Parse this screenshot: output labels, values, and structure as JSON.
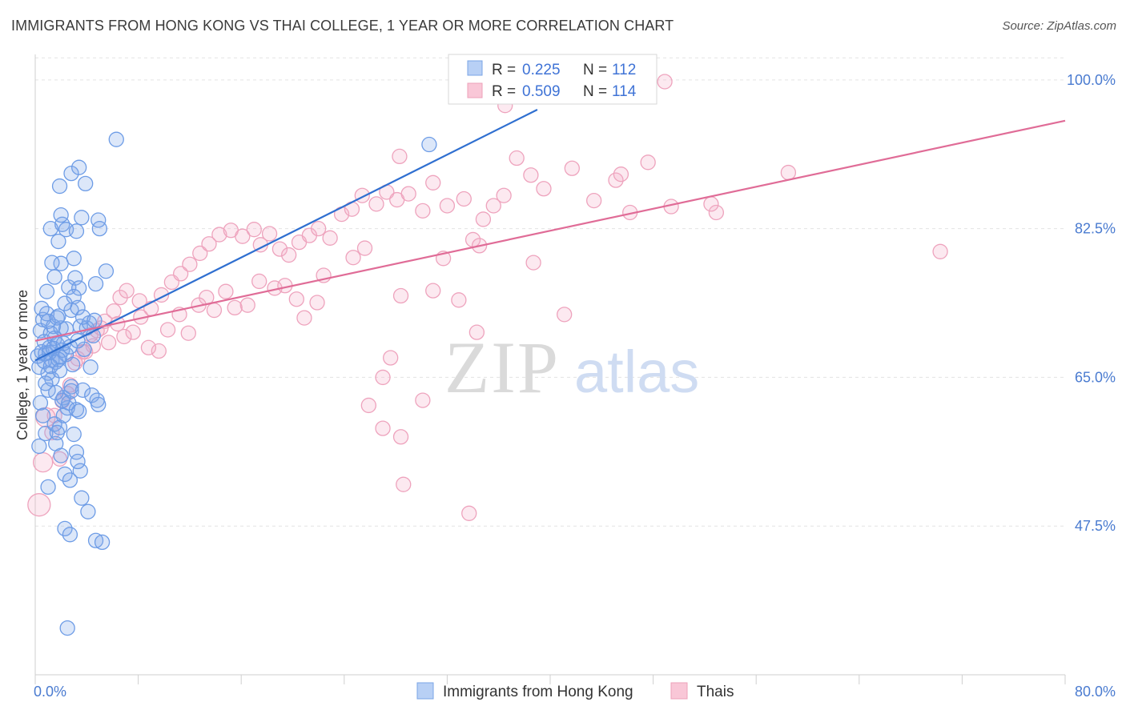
{
  "header": {
    "title": "IMMIGRANTS FROM HONG KONG VS THAI COLLEGE, 1 YEAR OR MORE CORRELATION CHART",
    "source": "Source: ZipAtlas.com"
  },
  "watermark": {
    "zip": "ZIP",
    "atlas": "atlas"
  },
  "chart_data": {
    "type": "scatter",
    "title": "IMMIGRANTS FROM HONG KONG VS THAI COLLEGE, 1 YEAR OR MORE CORRELATION CHART",
    "xlabel": "",
    "ylabel": "College, 1 year or more",
    "xlim": [
      0,
      80
    ],
    "ylim": [
      30,
      103
    ],
    "x_tick_labels": [
      "0.0%",
      "80.0%"
    ],
    "y_ticks": [
      47.5,
      65.0,
      82.5,
      100.0
    ],
    "y_tick_labels": [
      "47.5%",
      "65.0%",
      "82.5%",
      "100.0%"
    ],
    "grid": true,
    "legend_position": "top-center",
    "colors": {
      "blue": "#6fa0ea",
      "blue_line": "#2f6fd0",
      "pink": "#f0a3bf",
      "pink_line": "#e06c97"
    },
    "series": [
      {
        "name": "Immigrants from Hong Kong",
        "R": "0.225",
        "N": "112",
        "r_label": "R =",
        "n_label": "N =",
        "trend": {
          "x": [
            0,
            39
          ],
          "y": [
            67.0,
            96.5
          ]
        },
        "points": [
          [
            0.2,
            67.5
          ],
          [
            0.3,
            66.2
          ],
          [
            0.4,
            70.5
          ],
          [
            0.5,
            68.0
          ],
          [
            0.6,
            71.8
          ],
          [
            0.7,
            69.2
          ],
          [
            0.8,
            67.8
          ],
          [
            0.9,
            72.5
          ],
          [
            1.0,
            65.5
          ],
          [
            1.1,
            68.5
          ],
          [
            1.2,
            70.2
          ],
          [
            1.3,
            67.0
          ],
          [
            1.4,
            71.0
          ],
          [
            1.5,
            69.6
          ],
          [
            1.6,
            66.8
          ],
          [
            1.7,
            68.9
          ],
          [
            1.8,
            72.2
          ],
          [
            1.9,
            67.4
          ],
          [
            2.0,
            70.8
          ],
          [
            2.1,
            68.2
          ],
          [
            0.4,
            62.0
          ],
          [
            0.6,
            60.5
          ],
          [
            0.8,
            58.4
          ],
          [
            1.0,
            63.5
          ],
          [
            1.3,
            64.8
          ],
          [
            1.6,
            57.2
          ],
          [
            1.9,
            59.1
          ],
          [
            2.2,
            62.6
          ],
          [
            2.5,
            61.4
          ],
          [
            2.8,
            63.9
          ],
          [
            3.0,
            58.3
          ],
          [
            3.2,
            56.2
          ],
          [
            3.5,
            54.0
          ],
          [
            2.3,
            53.6
          ],
          [
            2.7,
            52.9
          ],
          [
            1.0,
            52.1
          ],
          [
            3.6,
            50.8
          ],
          [
            4.1,
            49.2
          ],
          [
            2.3,
            47.2
          ],
          [
            2.7,
            46.5
          ],
          [
            4.7,
            45.8
          ],
          [
            5.2,
            45.6
          ],
          [
            2.5,
            35.5
          ],
          [
            0.9,
            75.1
          ],
          [
            1.5,
            76.8
          ],
          [
            2.0,
            78.4
          ],
          [
            2.6,
            75.6
          ],
          [
            3.1,
            76.7
          ],
          [
            3.4,
            75.5
          ],
          [
            3.0,
            79.0
          ],
          [
            4.7,
            76.0
          ],
          [
            5.5,
            77.5
          ],
          [
            1.3,
            78.5
          ],
          [
            1.2,
            82.5
          ],
          [
            1.8,
            81.0
          ],
          [
            2.1,
            83.0
          ],
          [
            2.4,
            82.4
          ],
          [
            3.2,
            82.2
          ],
          [
            3.6,
            83.8
          ],
          [
            4.9,
            83.5
          ],
          [
            5.0,
            82.5
          ],
          [
            1.9,
            87.5
          ],
          [
            2.8,
            89.0
          ],
          [
            3.4,
            89.7
          ],
          [
            3.9,
            87.8
          ],
          [
            2.0,
            84.1
          ],
          [
            6.3,
            93.0
          ],
          [
            30.6,
            92.4
          ],
          [
            3.0,
            74.5
          ],
          [
            2.8,
            72.9
          ],
          [
            3.3,
            73.2
          ],
          [
            3.5,
            71.0
          ],
          [
            4.0,
            70.8
          ],
          [
            4.2,
            71.4
          ],
          [
            4.5,
            69.9
          ],
          [
            3.8,
            68.3
          ],
          [
            2.4,
            67.7
          ],
          [
            2.9,
            66.5
          ],
          [
            4.3,
            66.2
          ],
          [
            3.7,
            63.5
          ],
          [
            4.4,
            62.9
          ],
          [
            4.8,
            62.3
          ],
          [
            2.1,
            62.3
          ],
          [
            2.6,
            62.0
          ],
          [
            3.2,
            61.2
          ],
          [
            1.5,
            59.5
          ],
          [
            1.7,
            58.5
          ],
          [
            0.3,
            56.9
          ],
          [
            2.0,
            55.8
          ],
          [
            3.3,
            55.1
          ],
          [
            1.1,
            67.9
          ],
          [
            1.4,
            68.4
          ],
          [
            1.8,
            67.1
          ],
          [
            2.2,
            69.0
          ],
          [
            2.4,
            70.7
          ],
          [
            2.7,
            68.6
          ],
          [
            3.3,
            69.3
          ],
          [
            0.7,
            66.9
          ],
          [
            1.2,
            66.3
          ],
          [
            1.9,
            65.8
          ],
          [
            1.6,
            63.2
          ],
          [
            2.8,
            63.4
          ],
          [
            1.0,
            71.6
          ],
          [
            1.7,
            72.0
          ],
          [
            0.5,
            73.1
          ],
          [
            2.3,
            73.7
          ],
          [
            3.7,
            72.1
          ],
          [
            4.6,
            71.7
          ],
          [
            3.4,
            61.0
          ],
          [
            2.2,
            60.5
          ],
          [
            0.8,
            64.3
          ],
          [
            4.9,
            61.8
          ]
        ]
      },
      {
        "name": "Thais",
        "R": "0.509",
        "N": "114",
        "r_label": "R =",
        "n_label": "N =",
        "trend": {
          "x": [
            0,
            80
          ],
          "y": [
            69.3,
            95.2
          ]
        },
        "points": [
          [
            0.3,
            50.0
          ],
          [
            0.6,
            55.0
          ],
          [
            1.3,
            58.5
          ],
          [
            1.5,
            60.5
          ],
          [
            2.1,
            62.2
          ],
          [
            2.7,
            64.1
          ],
          [
            3.3,
            67.2
          ],
          [
            3.9,
            68.0
          ],
          [
            4.3,
            70.0
          ],
          [
            4.8,
            70.5
          ],
          [
            5.4,
            71.6
          ],
          [
            6.1,
            72.8
          ],
          [
            6.6,
            74.4
          ],
          [
            7.1,
            75.2
          ],
          [
            8.1,
            74.0
          ],
          [
            9.0,
            73.1
          ],
          [
            9.8,
            74.7
          ],
          [
            10.6,
            76.2
          ],
          [
            11.3,
            77.2
          ],
          [
            12.0,
            78.3
          ],
          [
            12.8,
            79.6
          ],
          [
            13.5,
            80.7
          ],
          [
            14.3,
            81.8
          ],
          [
            15.2,
            82.3
          ],
          [
            16.1,
            81.6
          ],
          [
            17.0,
            82.4
          ],
          [
            17.5,
            80.6
          ],
          [
            18.2,
            81.9
          ],
          [
            19.0,
            80.1
          ],
          [
            19.7,
            79.4
          ],
          [
            20.5,
            80.9
          ],
          [
            21.3,
            81.7
          ],
          [
            22.0,
            82.5
          ],
          [
            22.9,
            81.4
          ],
          [
            23.8,
            84.2
          ],
          [
            24.6,
            84.8
          ],
          [
            25.4,
            86.4
          ],
          [
            26.5,
            85.4
          ],
          [
            27.3,
            86.8
          ],
          [
            28.1,
            85.9
          ],
          [
            29.0,
            86.6
          ],
          [
            30.1,
            84.6
          ],
          [
            30.9,
            87.9
          ],
          [
            32.0,
            85.2
          ],
          [
            33.3,
            86.0
          ],
          [
            34.0,
            81.2
          ],
          [
            34.8,
            83.6
          ],
          [
            35.6,
            85.2
          ],
          [
            36.4,
            86.4
          ],
          [
            37.4,
            90.8
          ],
          [
            38.5,
            88.8
          ],
          [
            39.5,
            87.2
          ],
          [
            41.7,
            89.6
          ],
          [
            43.4,
            85.8
          ],
          [
            45.1,
            88.2
          ],
          [
            46.2,
            84.4
          ],
          [
            47.6,
            90.3
          ],
          [
            49.4,
            85.1
          ],
          [
            52.9,
            84.4
          ],
          [
            28.3,
            91.0
          ],
          [
            36.5,
            97.0
          ],
          [
            48.9,
            99.8
          ],
          [
            45.5,
            88.9
          ],
          [
            41.1,
            72.4
          ],
          [
            34.3,
            70.3
          ],
          [
            33.7,
            49.0
          ],
          [
            27.0,
            65.0
          ],
          [
            25.9,
            61.7
          ],
          [
            27.0,
            59.0
          ],
          [
            28.4,
            58.0
          ],
          [
            28.6,
            52.4
          ],
          [
            28.4,
            74.6
          ],
          [
            34.5,
            80.5
          ],
          [
            38.7,
            78.5
          ],
          [
            32.9,
            74.1
          ],
          [
            30.9,
            75.2
          ],
          [
            24.7,
            79.1
          ],
          [
            25.6,
            80.2
          ],
          [
            22.4,
            77.0
          ],
          [
            21.9,
            73.8
          ],
          [
            20.3,
            74.2
          ],
          [
            20.9,
            72.0
          ],
          [
            19.4,
            75.8
          ],
          [
            18.6,
            75.5
          ],
          [
            17.4,
            76.3
          ],
          [
            16.5,
            73.5
          ],
          [
            15.5,
            73.2
          ],
          [
            14.8,
            75.1
          ],
          [
            13.9,
            72.9
          ],
          [
            13.3,
            74.4
          ],
          [
            12.7,
            73.5
          ],
          [
            11.9,
            70.2
          ],
          [
            11.2,
            72.4
          ],
          [
            10.3,
            70.6
          ],
          [
            9.6,
            68.1
          ],
          [
            8.8,
            68.5
          ],
          [
            8.2,
            72.1
          ],
          [
            7.6,
            70.3
          ],
          [
            6.9,
            69.8
          ],
          [
            6.4,
            71.3
          ],
          [
            5.7,
            69.1
          ],
          [
            5.1,
            70.8
          ],
          [
            4.5,
            68.7
          ],
          [
            3.7,
            68.0
          ],
          [
            3.1,
            66.7
          ],
          [
            2.5,
            63.1
          ],
          [
            0.8,
            60.3
          ],
          [
            1.9,
            55.4
          ],
          [
            27.6,
            67.3
          ],
          [
            30.1,
            62.3
          ],
          [
            31.7,
            79.0
          ],
          [
            52.5,
            85.4
          ],
          [
            58.5,
            89.1
          ],
          [
            70.3,
            79.8
          ]
        ]
      }
    ]
  }
}
